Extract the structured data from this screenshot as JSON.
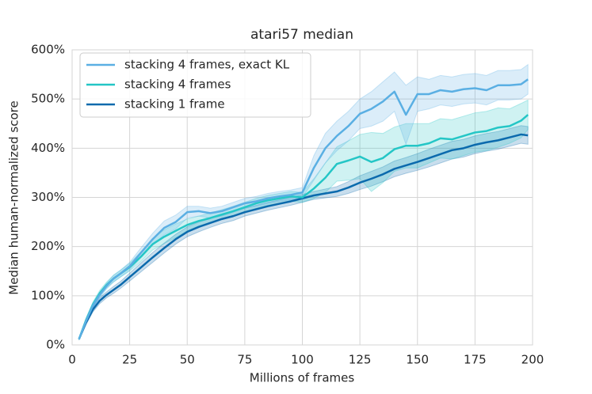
{
  "chart_data": {
    "type": "line",
    "title": "atari57 median",
    "x_label": "Millions of frames",
    "y_label": "Median human-normalized score",
    "xlim": [
      0,
      200
    ],
    "ylim": [
      0,
      600
    ],
    "xticks": [
      0,
      25,
      50,
      75,
      100,
      125,
      150,
      175,
      200
    ],
    "yticks": [
      {
        "value": 0,
        "label": "0%"
      },
      {
        "value": 100,
        "label": "100%"
      },
      {
        "value": 200,
        "label": "200%"
      },
      {
        "value": 300,
        "label": "300%"
      },
      {
        "value": 400,
        "label": "400%"
      },
      {
        "value": 500,
        "label": "500%"
      },
      {
        "value": 600,
        "label": "600%"
      }
    ],
    "grid": true,
    "legend": "upper left",
    "x": [
      3,
      6,
      9,
      12,
      15,
      18,
      21,
      25,
      30,
      35,
      40,
      45,
      50,
      55,
      60,
      65,
      70,
      75,
      80,
      85,
      90,
      95,
      100,
      105,
      110,
      115,
      120,
      125,
      130,
      135,
      140,
      145,
      150,
      155,
      160,
      165,
      170,
      175,
      180,
      185,
      190,
      195,
      198
    ],
    "series": [
      {
        "name": "stacking 4 frames, exact KL",
        "color": "#5aafe3",
        "values": [
          12,
          48,
          80,
          102,
          120,
          135,
          145,
          160,
          188,
          215,
          238,
          250,
          270,
          272,
          268,
          272,
          280,
          288,
          292,
          298,
          302,
          305,
          310,
          360,
          400,
          425,
          445,
          470,
          480,
          495,
          515,
          468,
          510,
          510,
          518,
          515,
          520,
          522,
          518,
          528,
          528,
          530,
          540
        ],
        "lower": [
          10,
          44,
          75,
          96,
          114,
          128,
          138,
          152,
          178,
          203,
          224,
          236,
          258,
          262,
          258,
          262,
          270,
          278,
          282,
          288,
          292,
          295,
          300,
          335,
          370,
          395,
          415,
          440,
          445,
          455,
          475,
          408,
          475,
          480,
          488,
          485,
          490,
          492,
          488,
          498,
          498,
          500,
          510
        ],
        "upper": [
          14,
          52,
          85,
          108,
          126,
          142,
          152,
          168,
          198,
          227,
          252,
          264,
          282,
          282,
          278,
          282,
          290,
          298,
          302,
          308,
          312,
          315,
          320,
          385,
          430,
          455,
          475,
          500,
          515,
          535,
          555,
          528,
          545,
          540,
          548,
          545,
          550,
          552,
          548,
          558,
          558,
          560,
          570
        ]
      },
      {
        "name": "stacking 4 frames",
        "color": "#24c6c6",
        "values": [
          12,
          50,
          82,
          105,
          122,
          135,
          145,
          158,
          180,
          205,
          220,
          232,
          244,
          252,
          258,
          265,
          272,
          280,
          288,
          294,
          298,
          302,
          300,
          318,
          340,
          368,
          375,
          383,
          372,
          380,
          398,
          405,
          405,
          410,
          420,
          418,
          425,
          432,
          435,
          442,
          445,
          456,
          468
        ],
        "lower": [
          10,
          46,
          77,
          99,
          116,
          128,
          138,
          150,
          170,
          193,
          206,
          218,
          232,
          242,
          248,
          255,
          262,
          270,
          278,
          284,
          288,
          292,
          290,
          298,
          310,
          333,
          335,
          338,
          312,
          330,
          353,
          360,
          360,
          370,
          380,
          378,
          385,
          392,
          395,
          402,
          410,
          421,
          438
        ],
        "upper": [
          14,
          54,
          87,
          111,
          128,
          142,
          152,
          166,
          190,
          217,
          234,
          246,
          256,
          262,
          268,
          275,
          282,
          290,
          298,
          304,
          308,
          312,
          310,
          338,
          370,
          403,
          415,
          428,
          432,
          430,
          443,
          450,
          450,
          450,
          460,
          458,
          465,
          472,
          475,
          482,
          480,
          491,
          498
        ]
      },
      {
        "name": "stacking 1 frame",
        "color": "#0b6aad",
        "values": [
          12,
          45,
          72,
          90,
          102,
          112,
          122,
          138,
          158,
          178,
          197,
          215,
          230,
          240,
          248,
          256,
          262,
          270,
          276,
          282,
          287,
          292,
          298,
          304,
          308,
          312,
          320,
          330,
          338,
          347,
          358,
          365,
          372,
          380,
          388,
          396,
          400,
          407,
          412,
          416,
          422,
          428,
          426
        ],
        "lower": [
          10,
          41,
          67,
          84,
          96,
          105,
          115,
          130,
          149,
          168,
          187,
          205,
          220,
          230,
          239,
          247,
          253,
          262,
          268,
          274,
          279,
          284,
          290,
          296,
          299,
          302,
          308,
          316,
          323,
          332,
          342,
          349,
          355,
          362,
          370,
          378,
          382,
          389,
          394,
          398,
          404,
          410,
          408
        ],
        "upper": [
          14,
          49,
          77,
          96,
          108,
          119,
          129,
          146,
          167,
          188,
          207,
          225,
          240,
          250,
          257,
          265,
          271,
          278,
          284,
          290,
          295,
          300,
          306,
          312,
          317,
          322,
          332,
          344,
          353,
          362,
          374,
          381,
          389,
          398,
          406,
          414,
          418,
          425,
          430,
          434,
          440,
          446,
          444
        ]
      }
    ]
  }
}
